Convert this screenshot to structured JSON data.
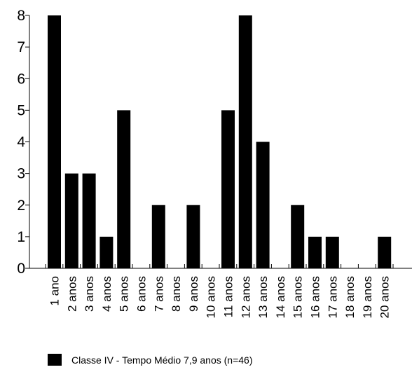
{
  "chart_data": {
    "type": "bar",
    "categories": [
      "1 ano",
      "2 anos",
      "3 anos",
      "4 anos",
      "5 anos",
      "6 anos",
      "7 anos",
      "8 anos",
      "9 anos",
      "10 anos",
      "11 anos",
      "12 anos",
      "13 anos",
      "14 anos",
      "15 anos",
      "16 anos",
      "17 anos",
      "18 anos",
      "19 anos",
      "20 anos"
    ],
    "series": [
      {
        "name": "Classe IV - Tempo Médio 7,9 anos (n=46)",
        "values": [
          8,
          3,
          3,
          1,
          5,
          0,
          2,
          0,
          2,
          0,
          5,
          8,
          4,
          0,
          2,
          1,
          1,
          0,
          0,
          1
        ],
        "color": "#000000"
      }
    ],
    "yticks": [
      "0",
      "1",
      "2",
      "3",
      "4",
      "5",
      "6",
      "7",
      "8"
    ],
    "ylim": [
      0,
      8
    ],
    "grid": false,
    "legend_position": "bottom-left"
  }
}
